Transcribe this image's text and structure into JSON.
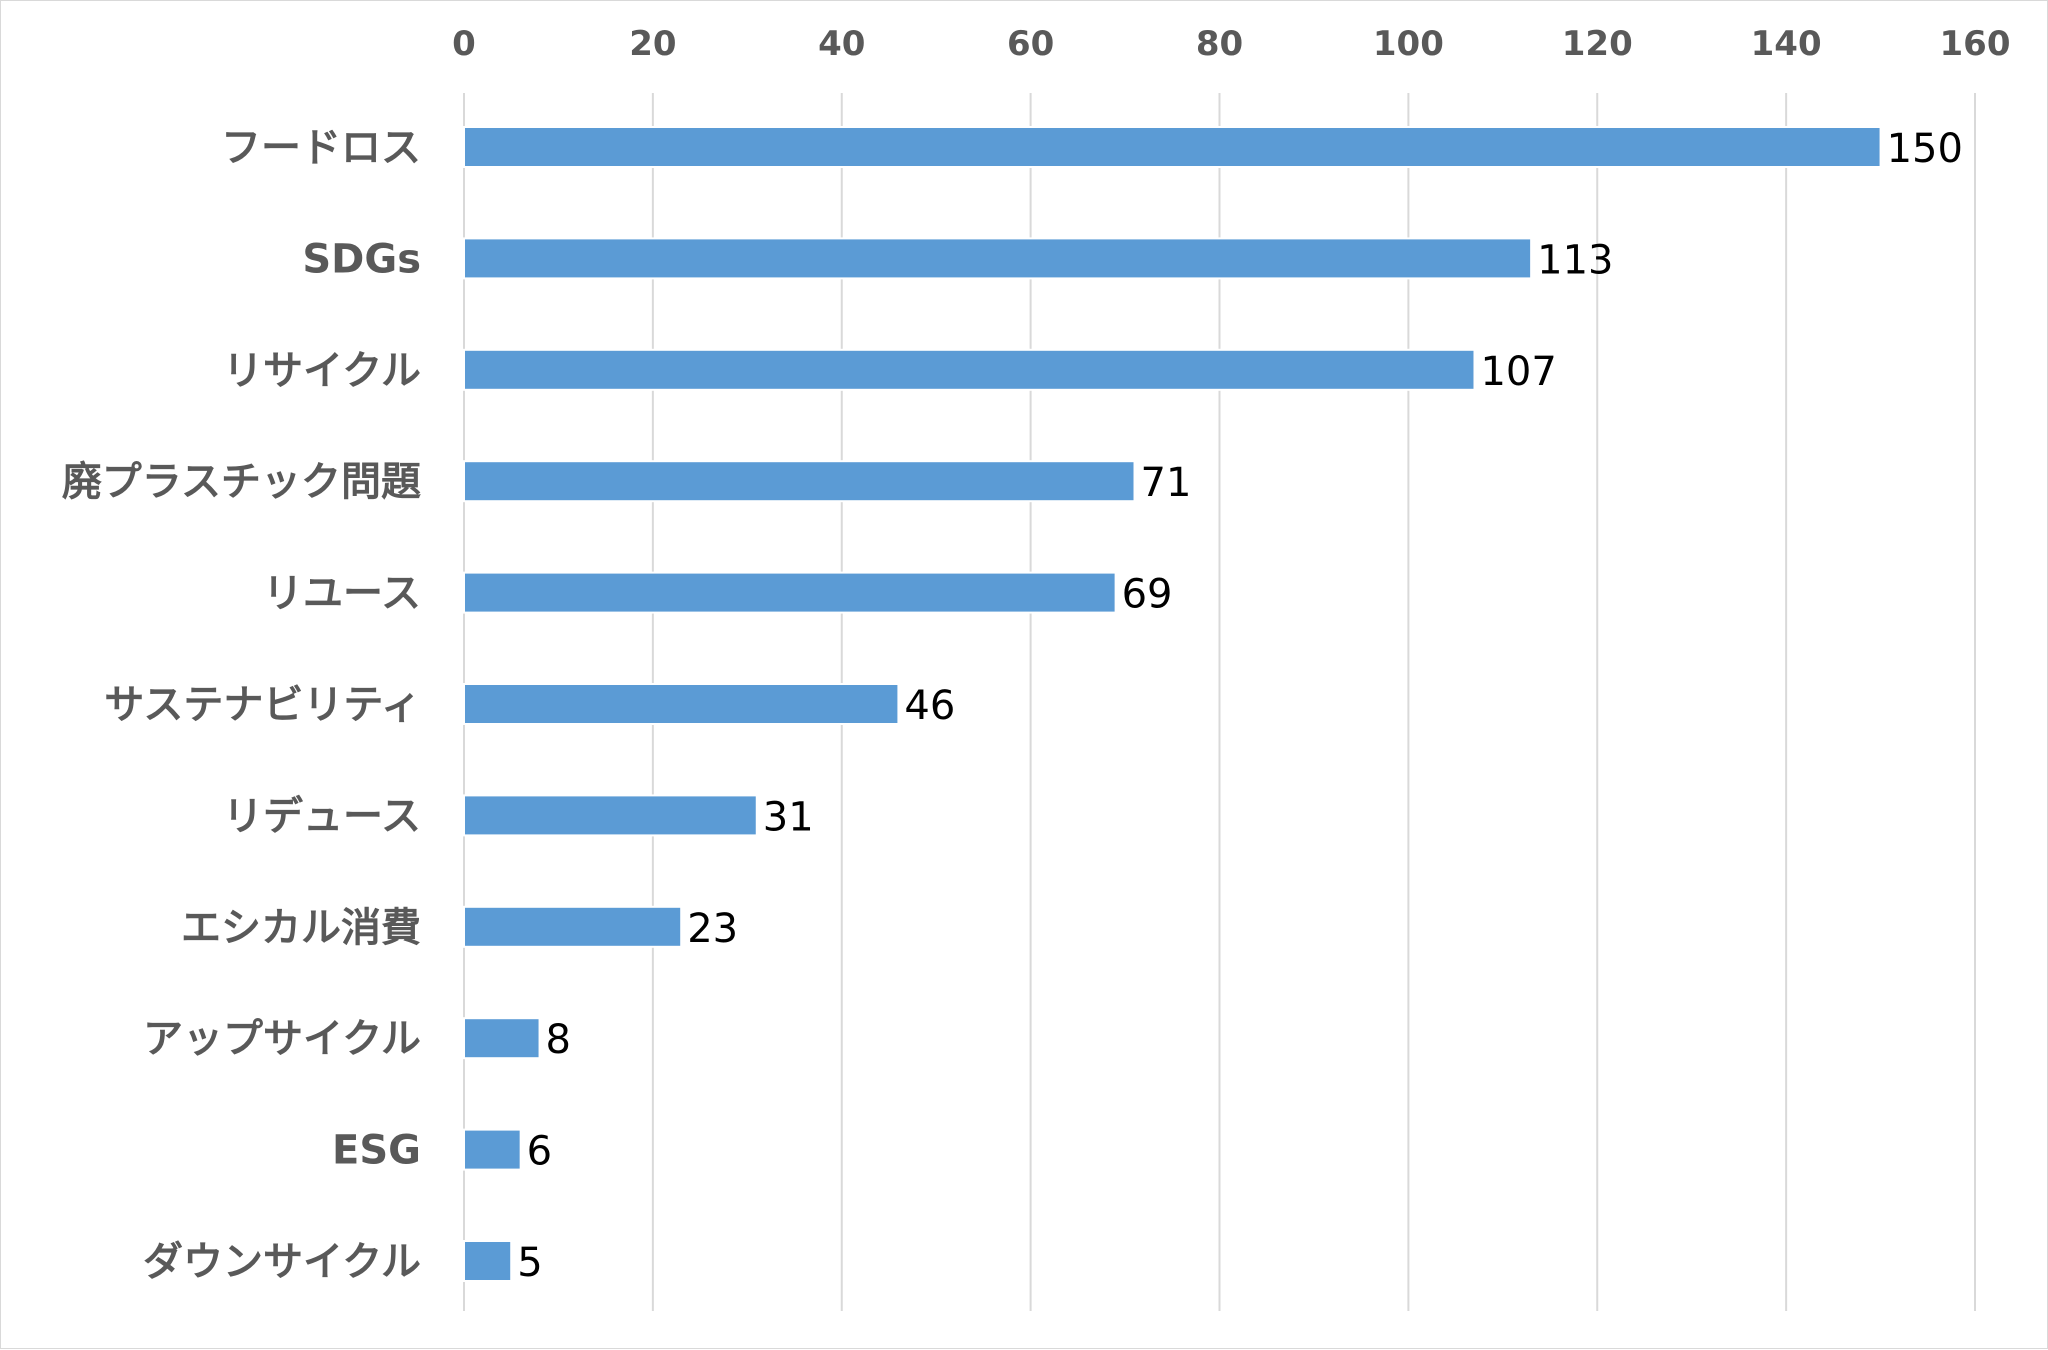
{
  "chart_data": {
    "type": "bar",
    "orientation": "horizontal",
    "categories": [
      "フードロス",
      "SDGs",
      "リサイクル",
      "廃プラスチック問題",
      "リユース",
      "サステナビリティ",
      "リデュース",
      "エシカル消費",
      "アップサイクル",
      "ESG",
      "ダウンサイクル"
    ],
    "values": [
      150,
      113,
      107,
      71,
      69,
      46,
      31,
      23,
      8,
      6,
      5
    ],
    "data_labels": [
      "150",
      "113",
      "107",
      "71",
      "69",
      "46",
      "31",
      "23",
      "8",
      "6",
      "5"
    ],
    "x_ticks": [
      "0",
      "20",
      "40",
      "60",
      "80",
      "100",
      "120",
      "140",
      "160"
    ],
    "xlim": [
      0,
      160
    ],
    "x_axis_position": "top",
    "title": "",
    "xlabel": "",
    "ylabel": "",
    "grid": "vertical",
    "legend": "none",
    "colors": {
      "bar": "#5b9bd5",
      "bar_outline": "#ffffff",
      "grid": "#d9d9d9",
      "axis_text": "#595959",
      "data_label_text": "#000000",
      "background": "#ffffff"
    }
  }
}
